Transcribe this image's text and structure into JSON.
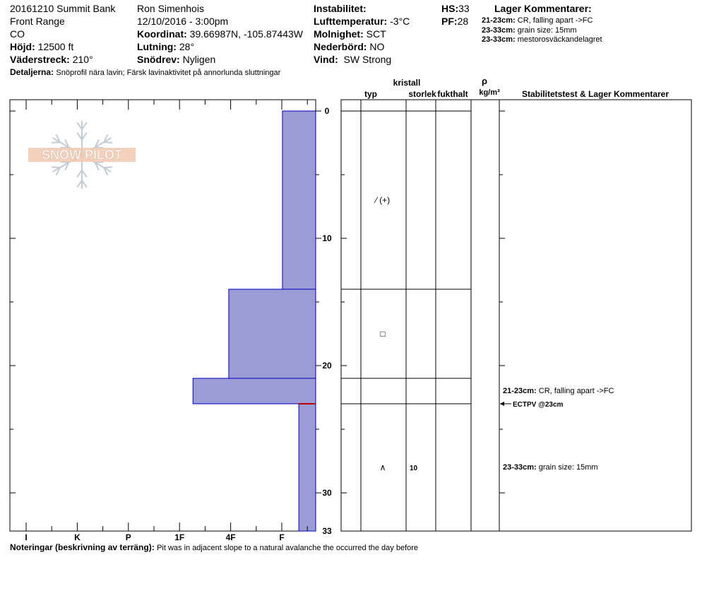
{
  "header": {
    "col1": [
      "20161210 Summit Bank",
      "Front Range",
      "CO"
    ],
    "hojd": {
      "label": "Höjd:",
      "value": "12500 ft"
    },
    "vaderstreck": {
      "label": "Väderstreck:",
      "value": "210°"
    },
    "observer": "Ron Simenhois",
    "datetime": "12/10/2016 - 3:00pm",
    "koordinat": {
      "label": "Koordinat:",
      "value": "39.66987N, -105.87443W"
    },
    "lutning": {
      "label": "Lutning:",
      "value": "28°"
    },
    "snodrev": {
      "label": "Snödrev:",
      "value": "Nyligen"
    },
    "instabilitet": {
      "label": "Instabilitet:",
      "value": ""
    },
    "lufttemp": {
      "label": "Lufttemperatur:",
      "value": "-3°C"
    },
    "molnighet": {
      "label": "Molnighet:",
      "value": "SCT"
    },
    "nederbord": {
      "label": "Nederbörd:",
      "value": "NO"
    },
    "vind": {
      "label": "Vind:",
      "value": "SW Strong"
    },
    "hs": {
      "label": "HS:",
      "value": "33"
    },
    "pf": {
      "label": "PF:",
      "value": "28"
    },
    "detaljerna": {
      "label": "Detaljerna:",
      "value": "Snöprofil nära lavin;  Färsk lavinaktivitet på annorlunda sluttningar"
    },
    "lager_title": "Lager Kommentarer:",
    "lager_comments": [
      {
        "range": "21-23cm:",
        "text": "CR, falling apart ->FC"
      },
      {
        "range": "23-33cm:",
        "text": "grain size: 15mm"
      },
      {
        "range": "23-33cm:",
        "text": "mestorosväckandelagret"
      }
    ]
  },
  "logo": {
    "text": "SNOW PILOT"
  },
  "columns": {
    "kristall": "kristall",
    "typ": "typ",
    "storlek": "storlek",
    "fukthalt": "fukthalt",
    "rho": "ρ",
    "density_unit": "kg/m³",
    "stability": "Stabilitetstest & Lager Kommentarer"
  },
  "footer": {
    "label": "Noteringar (beskrivning av terräng):",
    "value": "Pit was in adjacent slope to a natural avalanche the occurred the day before"
  },
  "chart_data": {
    "type": "bar",
    "orientation": "horizontal",
    "description_axis": "depth (cm from surface)",
    "depth_range": [
      0,
      33
    ],
    "depth_ticks": [
      0,
      10,
      20,
      30,
      33
    ],
    "hardness_scale": [
      "I",
      "K",
      "P",
      "1F",
      "4F",
      "F"
    ],
    "hardness_layers": [
      {
        "top": 0,
        "bottom": 14,
        "hardness": 0.65
      },
      {
        "top": 14,
        "bottom": 21,
        "hardness": 1.7
      },
      {
        "top": 21,
        "bottom": 23,
        "hardness": 2.4
      },
      {
        "top": 23,
        "bottom": 33,
        "hardness": 0.33
      }
    ],
    "layer_boundaries": [
      14,
      21,
      23
    ],
    "crystals": [
      {
        "depth": 7,
        "symbol": "⁄ (+)"
      },
      {
        "depth": 17.5,
        "symbol": "□"
      },
      {
        "depth": 28,
        "symbol": "∧",
        "size": "10"
      }
    ],
    "stability_comments": [
      {
        "depth": 22.5,
        "range": "21-23cm:",
        "text": "CR, falling apart ->FC"
      },
      {
        "depth": 23,
        "text": "ECTPV @23cm"
      },
      {
        "depth": 28.5,
        "range": "23-33cm:",
        "text": "grain size: 15mm"
      }
    ],
    "highlight_depth": 23,
    "colors": {
      "bar": "#9b9bd6",
      "bar_edge": "#0000c0",
      "highlight": "#c00000"
    }
  }
}
